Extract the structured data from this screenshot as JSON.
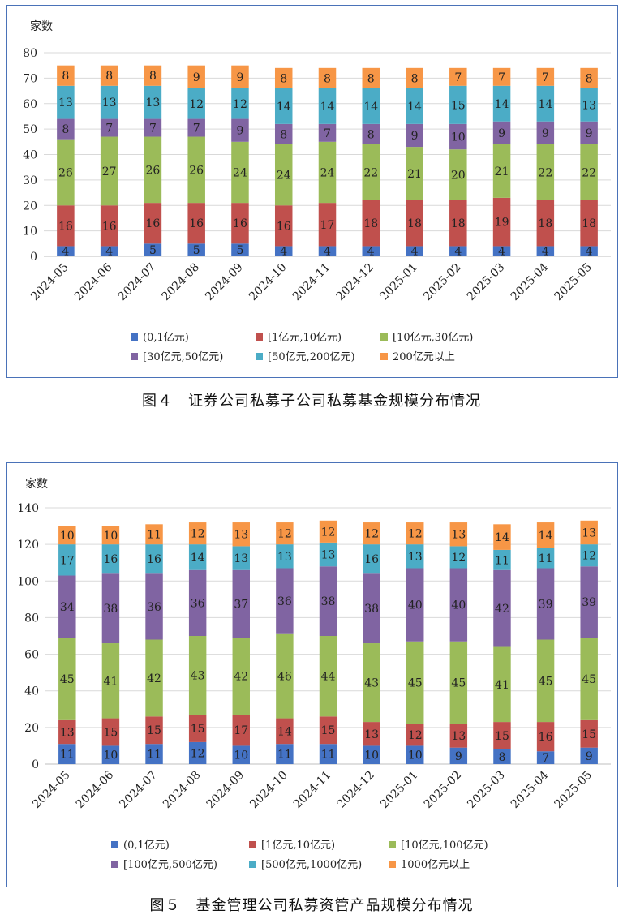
{
  "chart_data": [
    {
      "type": "bar",
      "stacked": true,
      "ylabel": "家数",
      "ylim": [
        0,
        80
      ],
      "yticks": [
        0,
        10,
        20,
        30,
        40,
        50,
        60,
        70,
        80
      ],
      "categories": [
        "2024-05",
        "2024-06",
        "2024-07",
        "2024-08",
        "2024-09",
        "2024-10",
        "2024-11",
        "2024-12",
        "2025-01",
        "2025-02",
        "2025-03",
        "2025-04",
        "2025-05"
      ],
      "series": [
        {
          "name": "(0,1亿元)",
          "color": "#4472c4",
          "values": [
            4,
            4,
            5,
            5,
            5,
            4,
            4,
            4,
            4,
            4,
            4,
            4,
            4
          ]
        },
        {
          "name": "[1亿元,10亿元)",
          "color": "#c0504d",
          "values": [
            16,
            16,
            16,
            16,
            16,
            16,
            17,
            18,
            18,
            18,
            19,
            18,
            18
          ]
        },
        {
          "name": "[10亿元,30亿元)",
          "color": "#9bbb59",
          "values": [
            26,
            27,
            26,
            26,
            24,
            24,
            24,
            22,
            21,
            20,
            21,
            22,
            22
          ]
        },
        {
          "name": "[30亿元,50亿元)",
          "color": "#8064a2",
          "values": [
            8,
            7,
            7,
            7,
            9,
            8,
            7,
            8,
            9,
            10,
            9,
            9,
            9
          ]
        },
        {
          "name": "[50亿元,200亿元)",
          "color": "#4bacc6",
          "values": [
            13,
            13,
            13,
            12,
            12,
            14,
            14,
            14,
            14,
            15,
            14,
            14,
            13
          ]
        },
        {
          "name": "200亿元以上",
          "color": "#f79646",
          "values": [
            8,
            8,
            8,
            9,
            9,
            8,
            8,
            8,
            8,
            7,
            7,
            7,
            8
          ]
        }
      ],
      "legend_position": "bottom",
      "caption": "图４　证券公司私募子公司私募基金规模分布情况"
    },
    {
      "type": "bar",
      "stacked": true,
      "ylabel": "家数",
      "ylim": [
        0,
        140
      ],
      "yticks": [
        0,
        20,
        40,
        60,
        80,
        100,
        120,
        140
      ],
      "categories": [
        "2024-05",
        "2024-06",
        "2024-07",
        "2024-08",
        "2024-09",
        "2024-10",
        "2024-11",
        "2024-12",
        "2025-01",
        "2025-02",
        "2025-03",
        "2025-04",
        "2025-05"
      ],
      "series": [
        {
          "name": "(0,1亿元)",
          "color": "#4472c4",
          "values": [
            11,
            10,
            11,
            12,
            10,
            11,
            11,
            10,
            10,
            9,
            8,
            7,
            9
          ]
        },
        {
          "name": "[1亿元,10亿元)",
          "color": "#c0504d",
          "values": [
            13,
            15,
            15,
            15,
            17,
            14,
            15,
            13,
            12,
            13,
            15,
            16,
            15
          ]
        },
        {
          "name": "[10亿元,100亿元)",
          "color": "#9bbb59",
          "values": [
            45,
            41,
            42,
            43,
            42,
            46,
            44,
            43,
            45,
            45,
            41,
            45,
            45
          ]
        },
        {
          "name": "[100亿元,500亿元)",
          "color": "#8064a2",
          "values": [
            34,
            38,
            36,
            36,
            37,
            36,
            38,
            38,
            40,
            40,
            42,
            39,
            39
          ]
        },
        {
          "name": "[500亿元,1000亿元)",
          "color": "#4bacc6",
          "values": [
            17,
            16,
            16,
            14,
            13,
            13,
            13,
            16,
            13,
            12,
            11,
            11,
            12
          ]
        },
        {
          "name": "1000亿元以上",
          "color": "#f79646",
          "values": [
            10,
            10,
            11,
            12,
            13,
            12,
            12,
            12,
            12,
            13,
            14,
            14,
            13
          ]
        }
      ],
      "legend_position": "bottom",
      "caption": "图５　基金管理公司私募资管产品规模分布情况"
    }
  ]
}
